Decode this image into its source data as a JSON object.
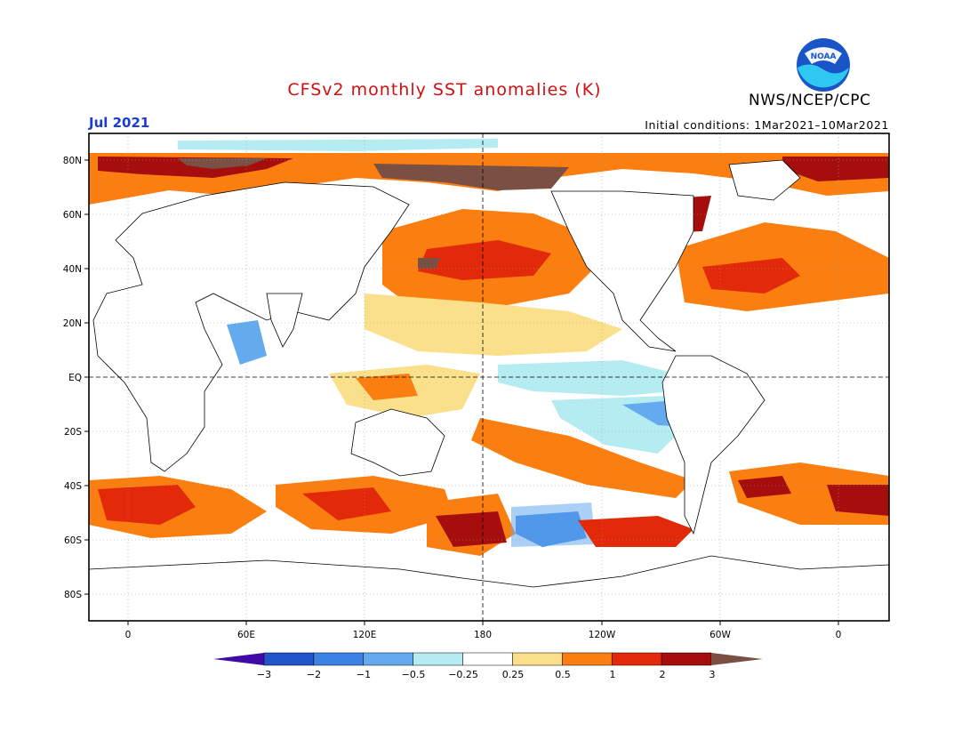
{
  "header": {
    "title": "CFSv2 monthly SST anomalies (K)",
    "agency": "NWS/NCEP/CPC",
    "logo_text": "NOAA",
    "month": "Jul 2021",
    "initial_conditions": "Initial conditions: 1Mar2021–10Mar2021"
  },
  "map": {
    "lat_labels": [
      "80N",
      "60N",
      "40N",
      "20N",
      "EQ",
      "20S",
      "40S",
      "60S",
      "80S"
    ],
    "lon_labels": [
      "0",
      "60E",
      "120E",
      "180",
      "120W",
      "60W",
      "0"
    ]
  },
  "colorbar": {
    "labels": [
      "−3",
      "−2",
      "−1",
      "−0.5",
      "−0.25",
      "0.25",
      "0.5",
      "1",
      "2",
      "3"
    ],
    "colors": {
      "below_min": "#3f0aa8",
      "bins": [
        "#1f55c8",
        "#3a82e4",
        "#64aaee",
        "#b4ecf2",
        "#ffffff",
        "#fbe08c",
        "#fb7e10",
        "#e22a0a",
        "#a60e0e"
      ],
      "above_max": "#7a5044"
    }
  },
  "colors": {
    "title": "#d01010",
    "month": "#1a3cd6",
    "logo_blue": "#1a55c8",
    "logo_cyan": "#2fc8f0"
  }
}
